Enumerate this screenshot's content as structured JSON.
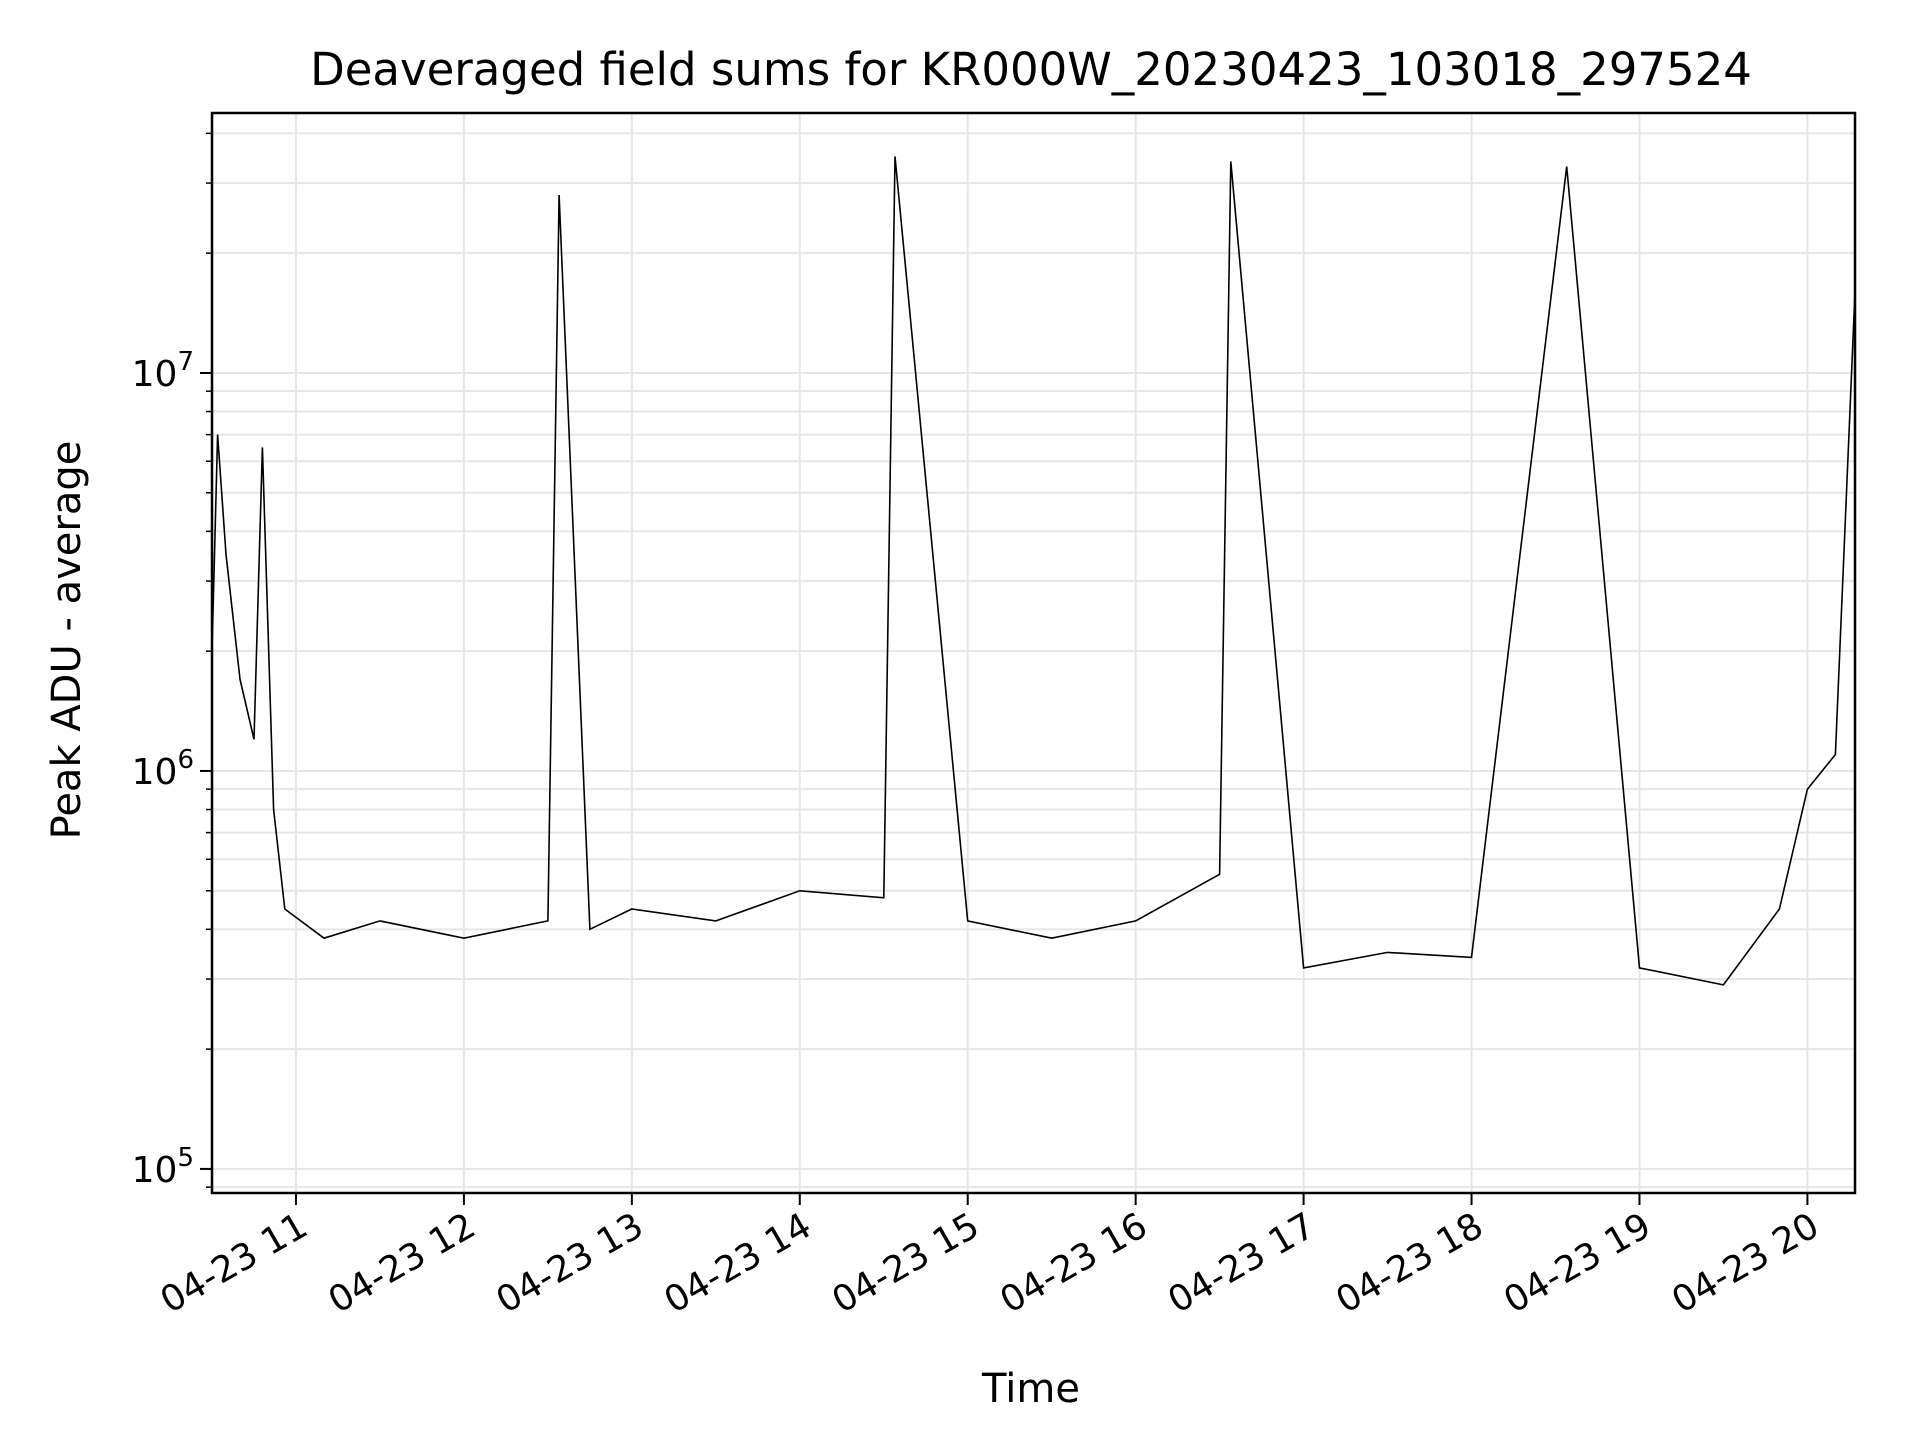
{
  "chart_data": {
    "type": "line",
    "title": "Deaveraged field sums for KR000W_20230423_103018_297524",
    "xlabel": "Time",
    "ylabel": "Peak ADU - average",
    "yscale": "log",
    "grid": true,
    "line_color": "#000000",
    "grid_color": "#e6e6e6",
    "xlim": [
      "2023-04-23 10:30",
      "2023-04-23 20:17"
    ],
    "ylim": [
      87000,
      45000000
    ],
    "x_ticks": [
      "04-23 11",
      "04-23 12",
      "04-23 13",
      "04-23 14",
      "04-23 15",
      "04-23 16",
      "04-23 17",
      "04-23 18",
      "04-23 19",
      "04-23 20"
    ],
    "y_ticks": [
      {
        "base": "10",
        "exp": "5",
        "value": 100000
      },
      {
        "base": "10",
        "exp": "6",
        "value": 1000000
      },
      {
        "base": "10",
        "exp": "7",
        "value": 10000000
      }
    ],
    "series": [
      {
        "points": [
          [
            "2023-04-23 10:30",
            2000000
          ],
          [
            "2023-04-23 10:32",
            7000000
          ],
          [
            "2023-04-23 10:35",
            3500000
          ],
          [
            "2023-04-23 10:40",
            1700000
          ],
          [
            "2023-04-23 10:45",
            1200000
          ],
          [
            "2023-04-23 10:48",
            6500000
          ],
          [
            "2023-04-23 10:52",
            800000
          ],
          [
            "2023-04-23 10:56",
            450000
          ],
          [
            "2023-04-23 11:10",
            380000
          ],
          [
            "2023-04-23 11:30",
            420000
          ],
          [
            "2023-04-23 12:00",
            380000
          ],
          [
            "2023-04-23 12:30",
            420000
          ],
          [
            "2023-04-23 12:34",
            28000000
          ],
          [
            "2023-04-23 12:45",
            400000
          ],
          [
            "2023-04-23 13:00",
            450000
          ],
          [
            "2023-04-23 13:30",
            420000
          ],
          [
            "2023-04-23 14:00",
            500000
          ],
          [
            "2023-04-23 14:30",
            480000
          ],
          [
            "2023-04-23 14:34",
            35000000
          ],
          [
            "2023-04-23 15:00",
            420000
          ],
          [
            "2023-04-23 15:30",
            380000
          ],
          [
            "2023-04-23 16:00",
            420000
          ],
          [
            "2023-04-23 16:30",
            550000
          ],
          [
            "2023-04-23 16:34",
            34000000
          ],
          [
            "2023-04-23 17:00",
            320000
          ],
          [
            "2023-04-23 17:30",
            350000
          ],
          [
            "2023-04-23 18:00",
            340000
          ],
          [
            "2023-04-23 18:34",
            33000000
          ],
          [
            "2023-04-23 19:00",
            320000
          ],
          [
            "2023-04-23 19:30",
            290000
          ],
          [
            "2023-04-23 19:50",
            450000
          ],
          [
            "2023-04-23 20:00",
            900000
          ],
          [
            "2023-04-23 20:10",
            1100000
          ],
          [
            "2023-04-23 20:17",
            16000000
          ]
        ]
      }
    ]
  }
}
